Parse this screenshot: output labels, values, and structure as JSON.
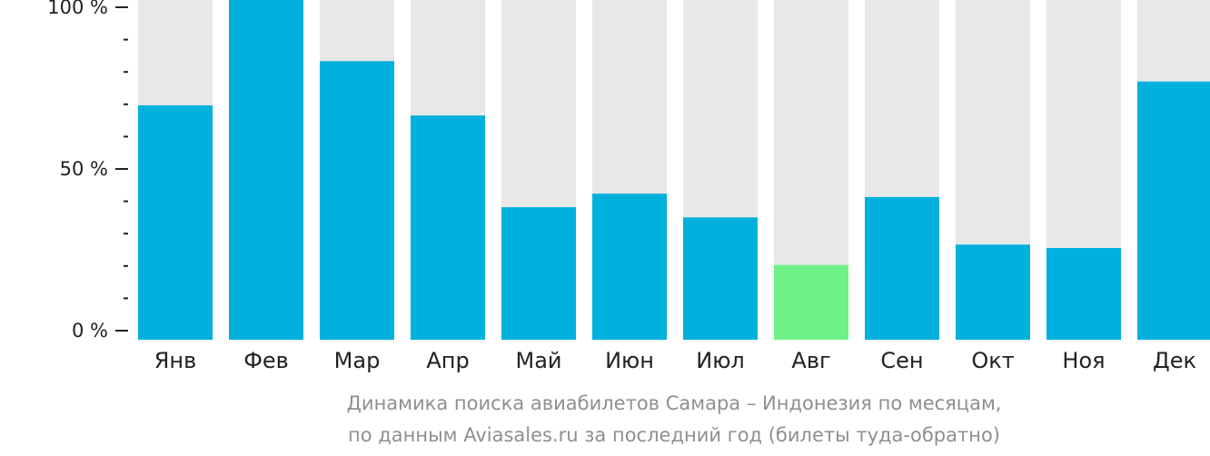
{
  "colors": {
    "bar": "#00b0dd",
    "bar_highlight": "#6ef185",
    "bar_background": "#e8e8e8",
    "axis": "#222222",
    "caption": "#8f8f8f"
  },
  "chart_data": {
    "type": "bar",
    "categories": [
      "Янв",
      "Фев",
      "Мар",
      "Апр",
      "Май",
      "Июн",
      "Июл",
      "Авг",
      "Сен",
      "Окт",
      "Ноя",
      "Дек"
    ],
    "values": [
      69,
      100,
      82,
      66,
      39,
      43,
      36,
      22,
      42,
      28,
      27,
      76
    ],
    "highlight_index": 7,
    "ylim": [
      0,
      100
    ],
    "yticks": [
      {
        "value": 0,
        "label": "0 %"
      },
      {
        "value": 50,
        "label": "50 %"
      },
      {
        "value": 100,
        "label": "100 %"
      }
    ],
    "minor_tick_step": 10,
    "title": "",
    "xlabel": "",
    "ylabel": "",
    "grid": false,
    "legend": "none"
  },
  "caption": {
    "line1": "Динамика поиска авиабилетов Самара – Индонезия по месяцам,",
    "line2": "по данным Aviasales.ru за последний год (билеты туда-обратно)"
  }
}
